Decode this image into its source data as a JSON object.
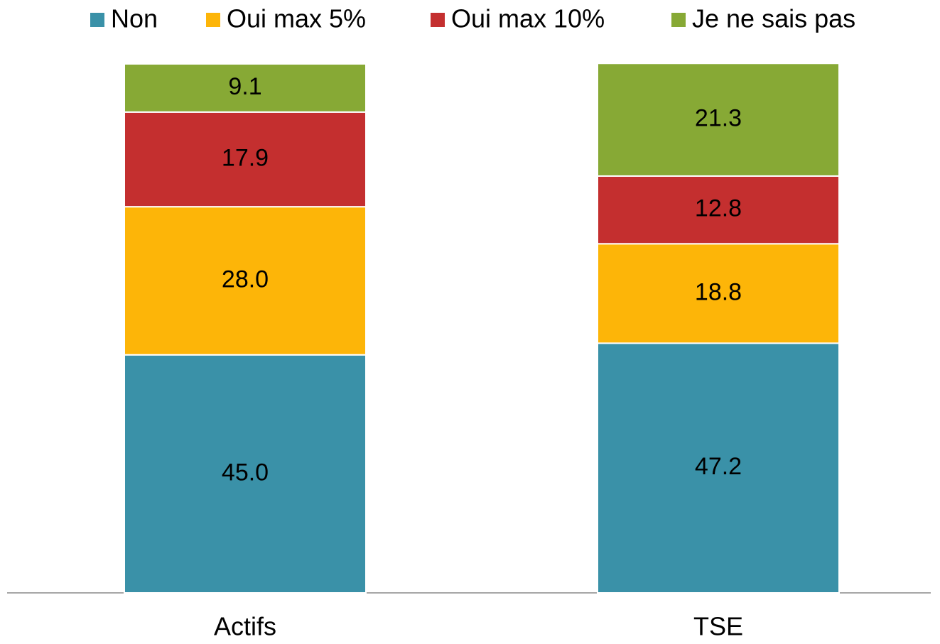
{
  "chart_data": {
    "type": "stacked_bar",
    "categories": [
      "Actifs",
      "TSE"
    ],
    "series": [
      {
        "name": "Non",
        "color": "#3a91a8",
        "values": [
          45.0,
          47.2
        ],
        "value_labels": [
          "45.0",
          "47.2"
        ]
      },
      {
        "name": "Oui max 5%",
        "color": "#fdb508",
        "values": [
          28.0,
          18.8
        ],
        "value_labels": [
          "28.0",
          "18.8"
        ]
      },
      {
        "name": "Oui max 10%",
        "color": "#c42f2f",
        "values": [
          17.9,
          12.8
        ],
        "value_labels": [
          "17.9",
          "12.8"
        ]
      },
      {
        "name": "Je ne sais pas",
        "color": "#87a935",
        "values": [
          9.1,
          21.3
        ],
        "value_labels": [
          "9.1",
          "21.3"
        ]
      }
    ],
    "ylim": [
      0,
      100
    ],
    "legend": "top"
  }
}
